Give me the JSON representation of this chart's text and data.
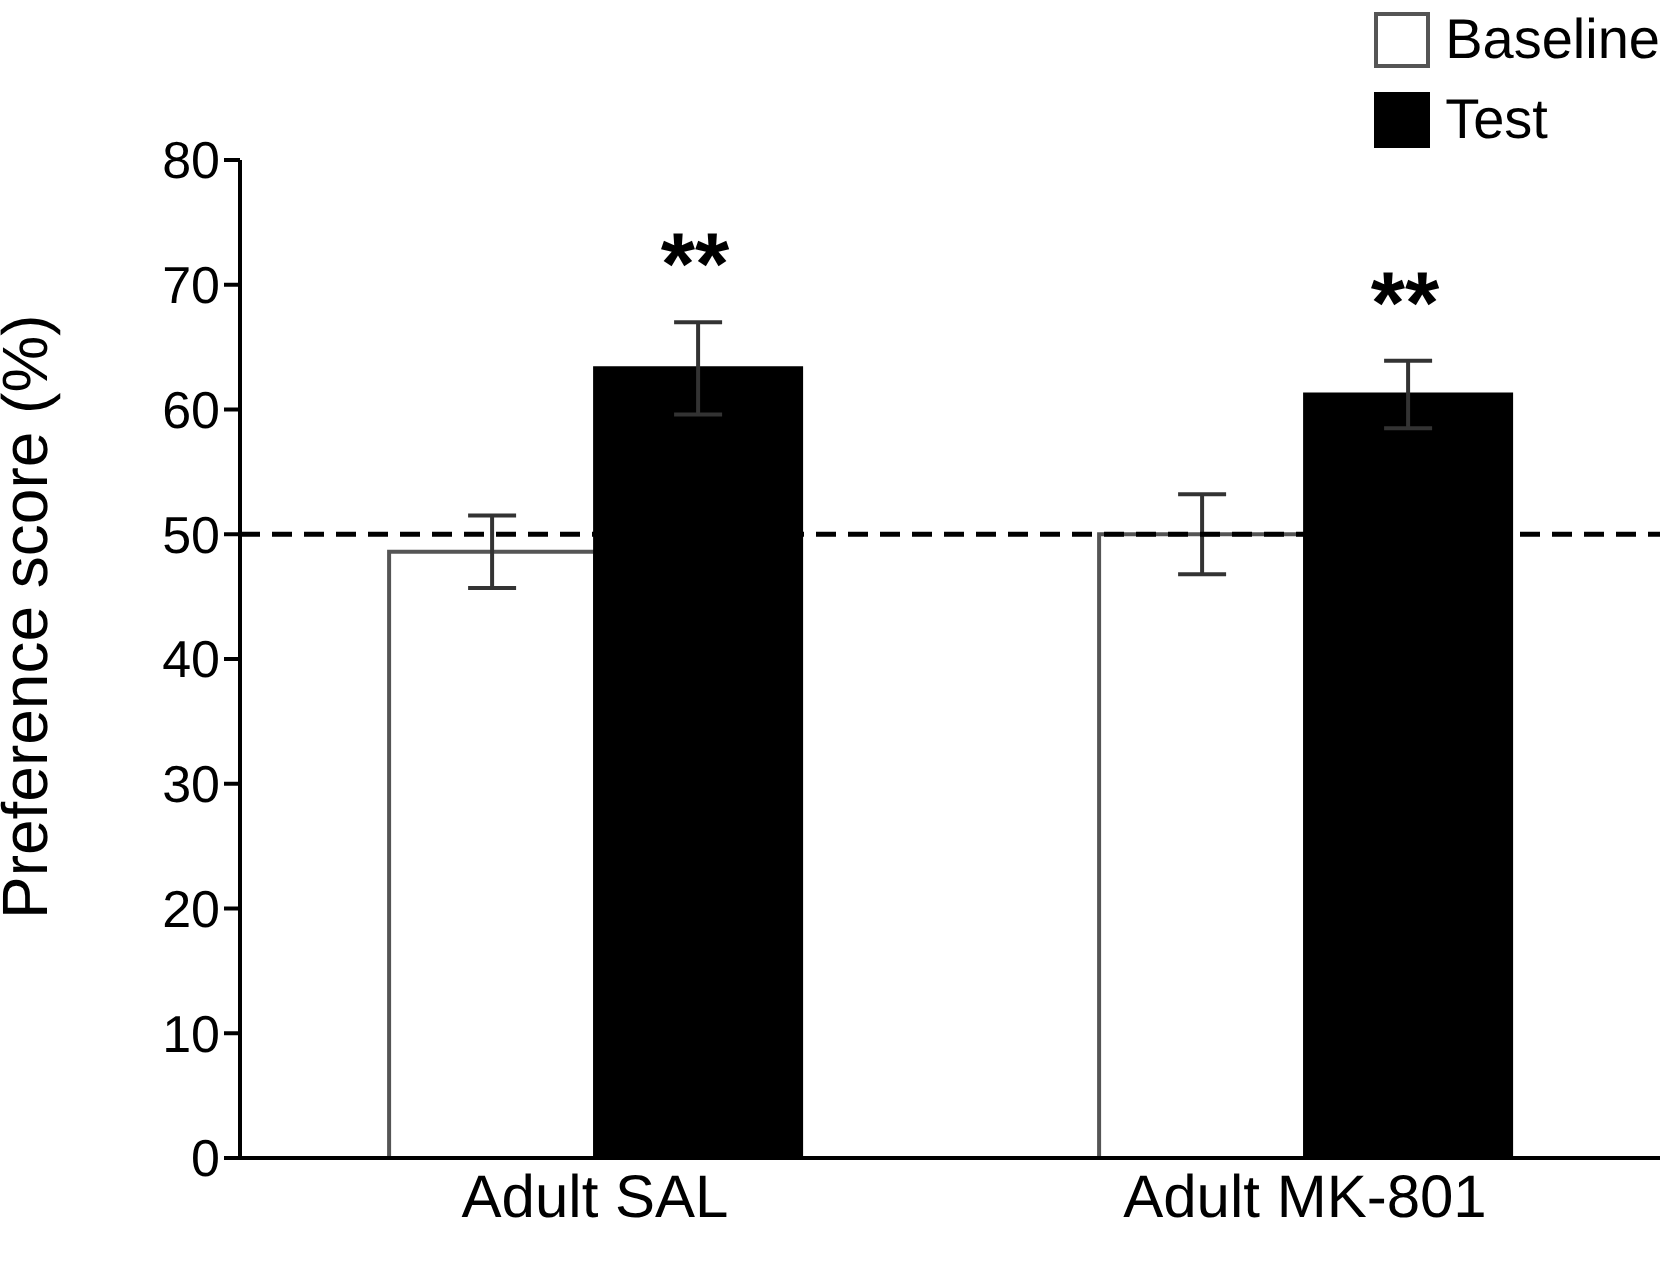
{
  "chart_data": {
    "type": "bar",
    "ylabel": "Preference score (%)",
    "categories": [
      "Adult SAL",
      "Adult MK-801"
    ],
    "series": [
      {
        "name": "Baseline",
        "color": "#ffffff",
        "values": [
          48.6,
          50.0
        ],
        "errors": [
          2.9,
          3.2
        ]
      },
      {
        "name": "Test",
        "color": "#000000",
        "values": [
          63.3,
          61.2
        ],
        "errors": [
          3.7,
          2.7
        ]
      }
    ],
    "ylim": [
      0,
      80
    ],
    "yticks": [
      0,
      10,
      20,
      30,
      40,
      50,
      60,
      70,
      80
    ],
    "ref_lines": [
      {
        "axis": "y",
        "value": 50,
        "line_style": "dashed",
        "color": "#000000"
      }
    ],
    "annotations": [
      "**",
      "**"
    ],
    "legend": "top right",
    "grid": false
  }
}
